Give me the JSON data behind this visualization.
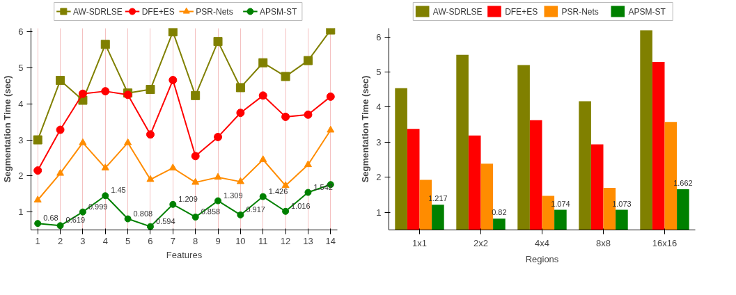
{
  "chart_data": [
    {
      "type": "line",
      "xlabel": "Features",
      "ylabel": "Segmentation Time (sec)",
      "x": [
        1,
        2,
        3,
        4,
        5,
        6,
        7,
        8,
        9,
        10,
        11,
        12,
        13,
        14
      ],
      "xlim": [
        0.7,
        14.3
      ],
      "xticks": [
        1,
        2,
        3,
        4,
        5,
        6,
        7,
        8,
        9,
        10,
        11,
        12,
        13,
        14
      ],
      "ylim": [
        0.5,
        6.1
      ],
      "yticks": [
        1,
        2,
        3,
        4,
        5,
        6
      ],
      "grid": "x",
      "legend": "top",
      "line_style": "solid",
      "series": [
        {
          "name": "AW-SDRLSE",
          "color": "#808000",
          "marker": "square",
          "values": [
            3.0,
            4.65,
            4.1,
            5.65,
            4.3,
            4.4,
            6.0,
            4.23,
            5.73,
            4.45,
            5.14,
            4.76,
            5.2,
            6.05
          ]
        },
        {
          "name": "DFE+ES",
          "color": "#ff0000",
          "marker": "circle",
          "values": [
            2.15,
            3.28,
            4.28,
            4.35,
            4.25,
            3.15,
            4.66,
            2.55,
            3.08,
            3.75,
            4.23,
            3.64,
            3.7,
            4.2
          ]
        },
        {
          "name": "PSR-Nets",
          "color": "#ff8c00",
          "marker": "triangle",
          "values": [
            1.33,
            2.07,
            2.92,
            2.22,
            2.92,
            1.9,
            2.22,
            1.82,
            1.96,
            1.84,
            2.45,
            1.73,
            2.31,
            3.27
          ]
        },
        {
          "name": "APSM-ST",
          "color": "#008000",
          "marker": "circle",
          "values": [
            0.68,
            0.619,
            0.999,
            1.45,
            0.808,
            0.594,
            1.209,
            0.858,
            1.309,
            0.917,
            1.426,
            1.016,
            1.542,
            1.76
          ],
          "value_labels": [
            "0.68",
            "0.619",
            "0.999",
            "1.45",
            "0.808",
            "0.594",
            "1.209",
            "0.858",
            "1.309",
            "0.917",
            "1.426",
            "1.016",
            "1.542",
            null
          ]
        }
      ]
    },
    {
      "type": "bar",
      "xlabel": "Regions",
      "ylabel": "Segmentation Time (sec)",
      "categories": [
        "1x1",
        "2x2",
        "4x4",
        "8x8",
        "16x16"
      ],
      "ylim": [
        0.5,
        6.25
      ],
      "yticks": [
        1,
        2,
        3,
        4,
        5,
        6
      ],
      "grid": false,
      "legend": "top",
      "series": [
        {
          "name": "AW-SDRLSE",
          "color": "#808000",
          "values": [
            4.54,
            5.49,
            5.2,
            4.17,
            6.19
          ]
        },
        {
          "name": "DFE+ES",
          "color": "#ff0000",
          "values": [
            3.38,
            3.19,
            3.63,
            2.94,
            5.29
          ]
        },
        {
          "name": "PSR-Nets",
          "color": "#ff8c00",
          "values": [
            1.93,
            2.39,
            1.47,
            1.7,
            3.58
          ]
        },
        {
          "name": "APSM-ST",
          "color": "#008000",
          "values": [
            1.217,
            0.82,
            1.074,
            1.073,
            1.662
          ],
          "value_labels": [
            "1.217",
            "0.82",
            "1.074",
            "1.073",
            "1.662"
          ]
        }
      ]
    }
  ]
}
